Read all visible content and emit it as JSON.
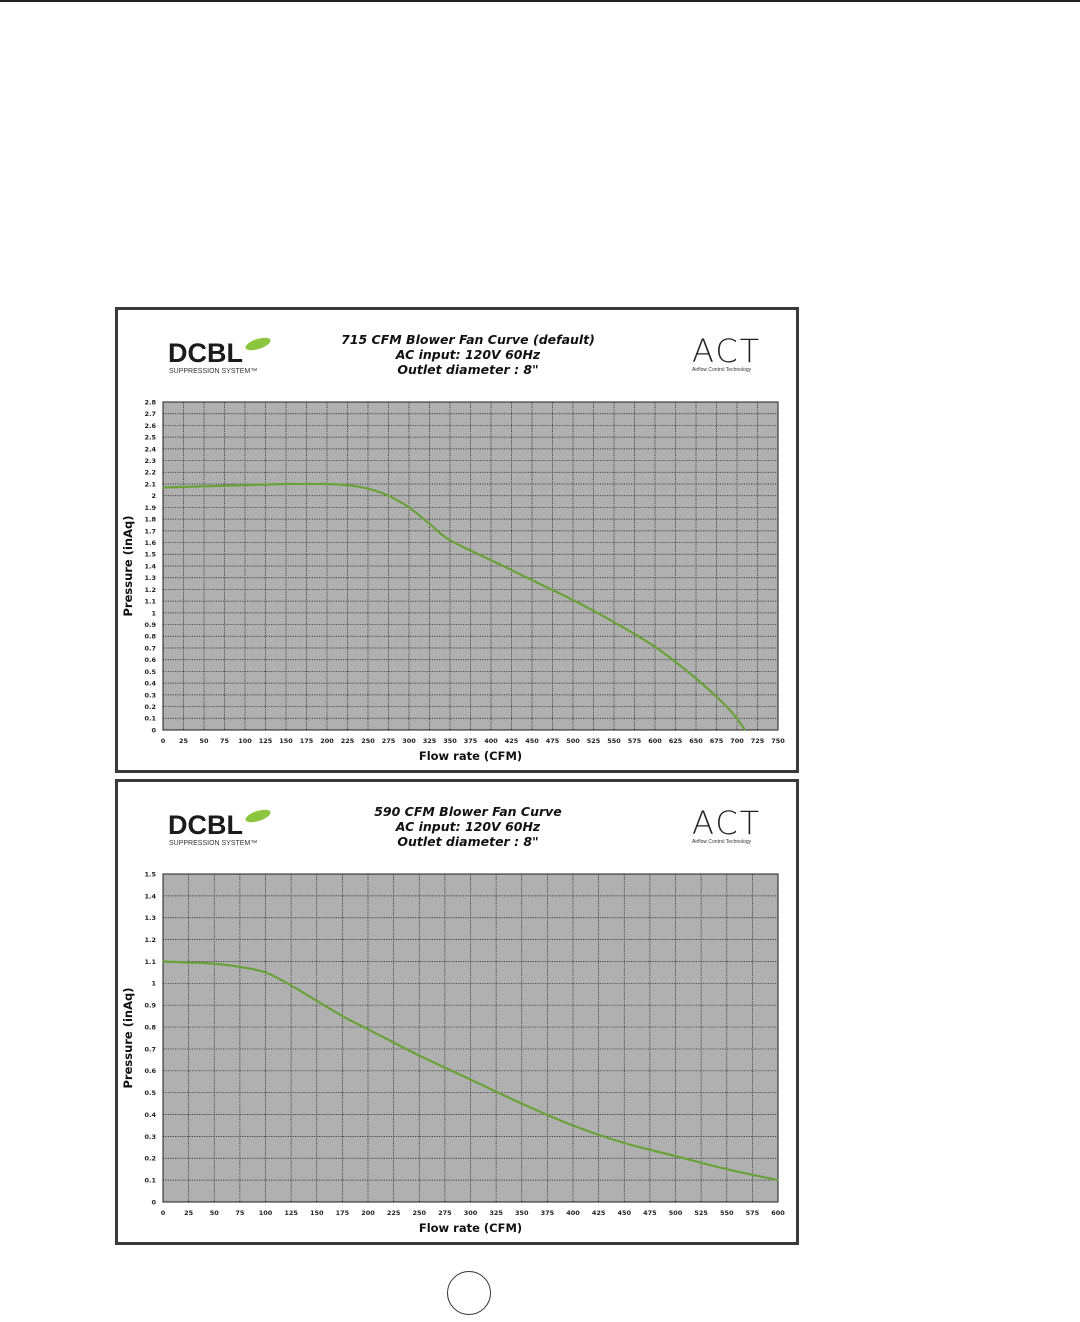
{
  "charts": [
    {
      "brand_left": "DCBL",
      "brand_left_sub": "SUPPRESSION SYSTEM™",
      "brand_right": "ACT",
      "brand_right_sub": "Airflow Control Technology",
      "title_lines": [
        "715 CFM Blower Fan Curve (default)",
        "AC input: 120V  60Hz",
        "Outlet diameter : 8\""
      ]
    },
    {
      "brand_left": "DCBL",
      "brand_left_sub": "SUPPRESSION SYSTEM™",
      "brand_right": "ACT",
      "brand_right_sub": "Airflow Control Technology",
      "title_lines": [
        "590 CFM Blower Fan Curve",
        "AC input: 120V  60Hz",
        "Outlet diameter : 8\""
      ]
    }
  ],
  "colors": {
    "plot_bg": "#b0b0b0",
    "grid": "#1e1e1e",
    "curve": "#6aa23a",
    "leaf": "#8cc63f"
  },
  "chart_data": [
    {
      "type": "line",
      "title": "715 CFM Blower Fan Curve (default)",
      "xlabel": "Flow rate (CFM)",
      "ylabel": "Pressure (inAq)",
      "xlim": [
        0,
        750
      ],
      "ylim": [
        0,
        2.8
      ],
      "xstep": 25,
      "ystep": 0.1,
      "grid": true,
      "x": [
        0,
        50,
        100,
        150,
        175,
        200,
        225,
        250,
        275,
        300,
        325,
        350,
        400,
        450,
        500,
        550,
        600,
        650,
        690,
        710
      ],
      "y": [
        2.07,
        2.08,
        2.09,
        2.1,
        2.1,
        2.1,
        2.09,
        2.06,
        2.0,
        1.9,
        1.76,
        1.62,
        1.45,
        1.28,
        1.11,
        0.92,
        0.71,
        0.44,
        0.18,
        0.0
      ]
    },
    {
      "type": "line",
      "title": "590 CFM Blower Fan Curve",
      "xlabel": "Flow rate (CFM)",
      "ylabel": "Pressure (inAq)",
      "xlim": [
        0,
        600
      ],
      "ylim": [
        0,
        1.5
      ],
      "xstep": 25,
      "ystep": 0.1,
      "grid": true,
      "x": [
        0,
        25,
        50,
        75,
        100,
        125,
        150,
        175,
        200,
        250,
        300,
        350,
        400,
        450,
        500,
        550,
        600
      ],
      "y": [
        1.1,
        1.095,
        1.09,
        1.075,
        1.05,
        0.99,
        0.92,
        0.85,
        0.79,
        0.67,
        0.56,
        0.45,
        0.35,
        0.27,
        0.21,
        0.15,
        0.1
      ]
    }
  ]
}
